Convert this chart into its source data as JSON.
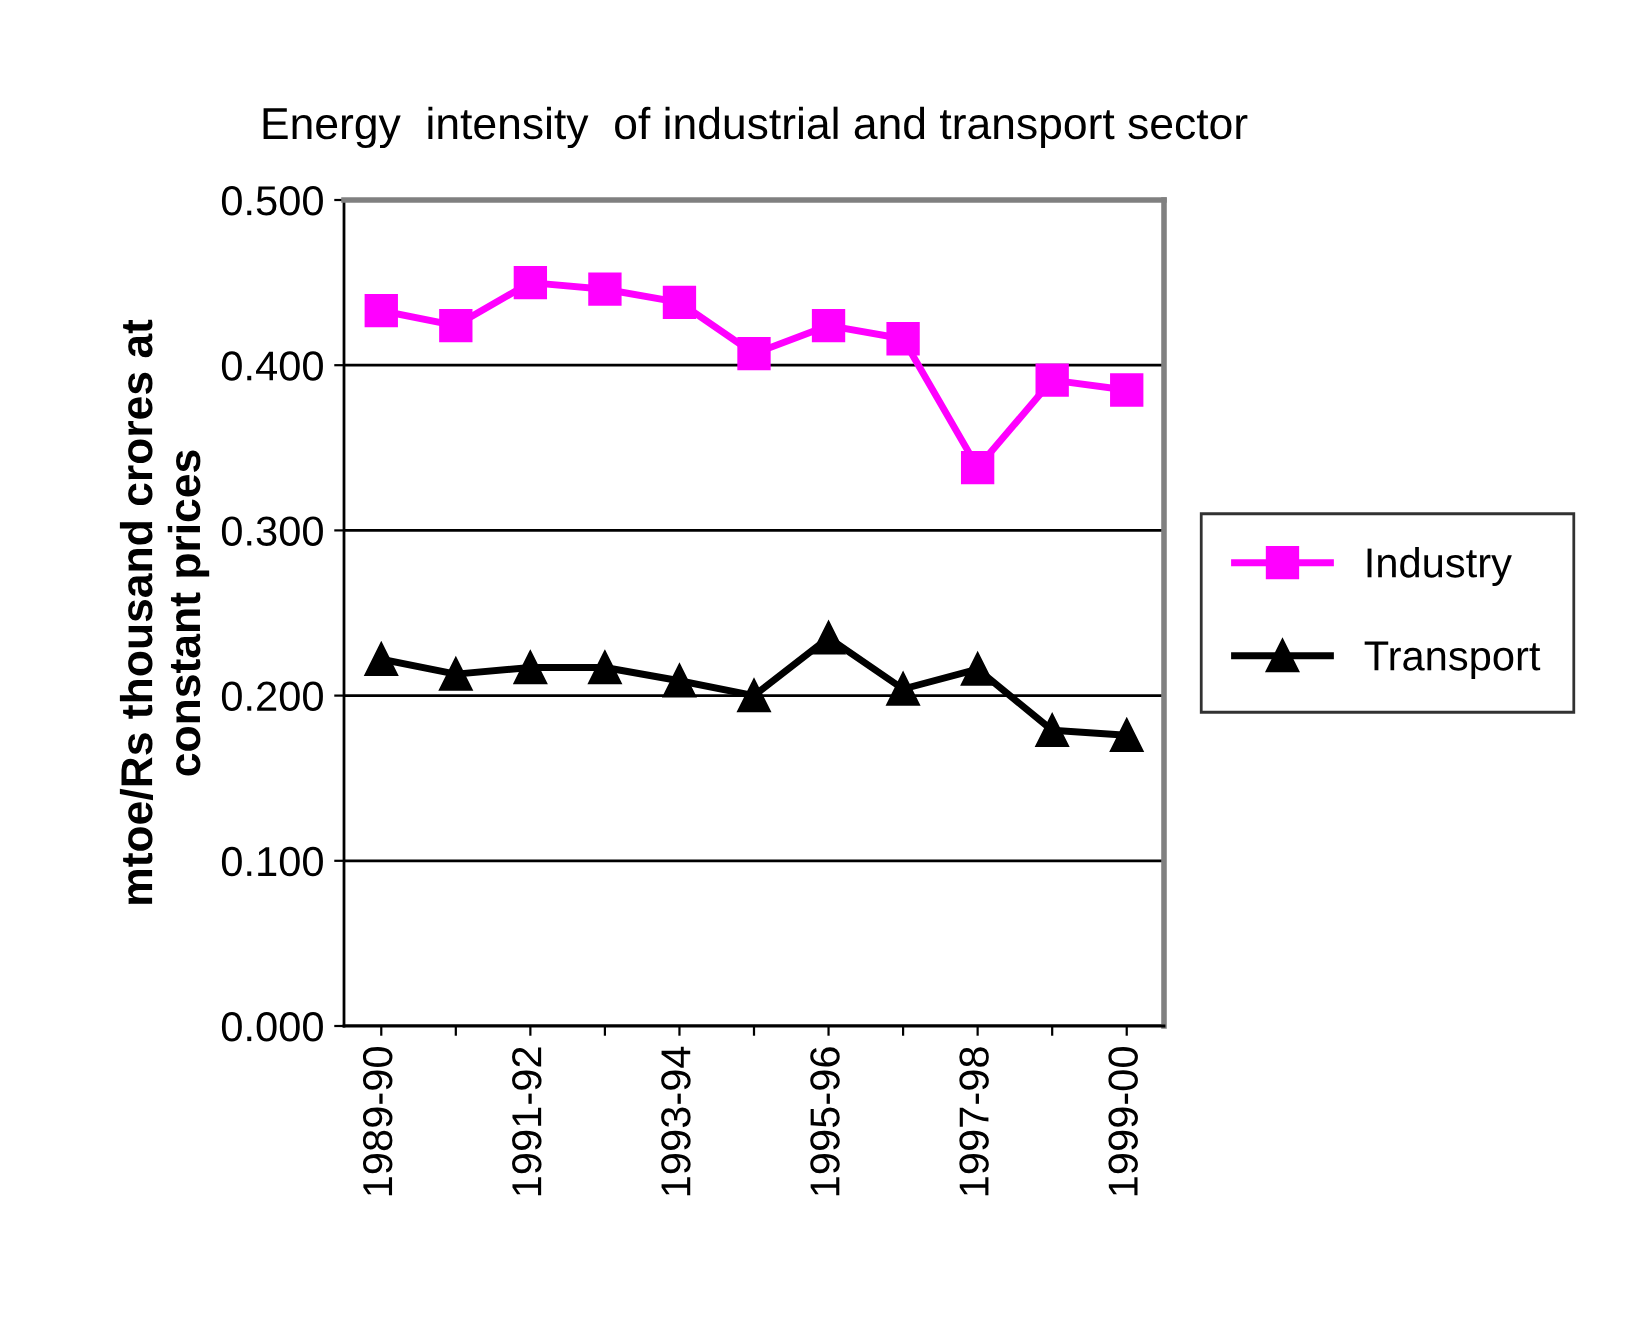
{
  "chart_data": {
    "type": "line",
    "title": "Energy  intensity  of industrial and transport sector",
    "ylabel": "mtoe/Rs thousand crores at\nconstant prices",
    "categories": [
      "1989-90",
      null,
      "1991-92",
      null,
      "1993-94",
      null,
      "1995-96",
      null,
      "1997-98",
      null,
      "1999-00"
    ],
    "series": [
      {
        "name": "Industry",
        "color": "#ff00ff",
        "marker": "square",
        "values": [
          0.433,
          0.424,
          0.45,
          0.446,
          0.438,
          0.407,
          0.424,
          0.416,
          0.338,
          0.391,
          0.385
        ]
      },
      {
        "name": "Transport",
        "color": "#000000",
        "marker": "triangle",
        "values": [
          0.222,
          0.213,
          0.217,
          0.217,
          0.209,
          0.2,
          0.235,
          0.204,
          0.216,
          0.179,
          0.176
        ]
      }
    ],
    "ylim": [
      0,
      0.5
    ],
    "yticks": [
      {
        "value": 0,
        "label": "0.000"
      },
      {
        "value": 0.1,
        "label": "0.100"
      },
      {
        "value": 0.2,
        "label": "0.200"
      },
      {
        "value": 0.3,
        "label": "0.300"
      },
      {
        "value": 0.4,
        "label": "0.400"
      },
      {
        "value": 0.5,
        "label": "0.500"
      }
    ],
    "grid": "y",
    "legend": "right",
    "line_style": "solid"
  }
}
